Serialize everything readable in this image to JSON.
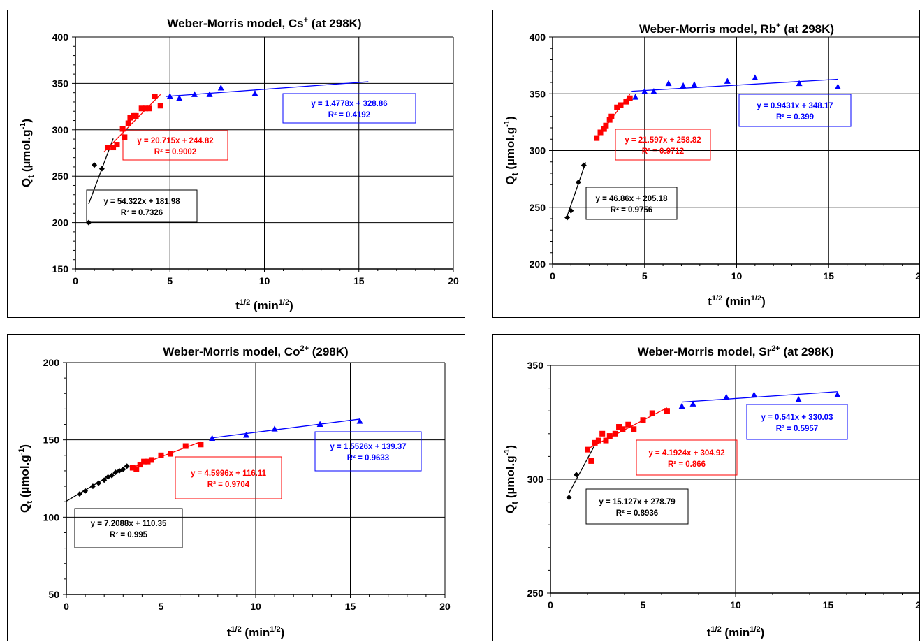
{
  "chart_data": [
    {
      "type": "scatter",
      "title": "Weber-Morris model, Cs",
      "title_ion": "+",
      "title_suffix": " (at 298K)",
      "xlabel": "t",
      "xlabel_sup": "1/2",
      "xlabel_unit": " (min",
      "xlabel_unit_sup": "1/2",
      "xlabel_close": ")",
      "ylabel": "Q",
      "ylabel_sub": "t",
      "ylabel_unit": " (µmol.g",
      "ylabel_unit_sup": "-1",
      "ylabel_close": ")",
      "xlim": [
        0,
        20
      ],
      "ylim": [
        150,
        400
      ],
      "xticks": [
        "0",
        "5",
        "10",
        "15",
        "20"
      ],
      "yticks": [
        "150",
        "200",
        "250",
        "300",
        "350",
        "400"
      ],
      "grid": true,
      "series": [
        {
          "color": "#000000",
          "marker": "diamond",
          "x": [
            0.7,
            1.0,
            1.4
          ],
          "y": [
            200,
            262,
            258
          ],
          "fit": {
            "slope": 54.322,
            "intercept": 181.98,
            "x_range": [
              0.7,
              2.0
            ]
          },
          "equation": "y = 54.322x + 181.98",
          "r2": "R² = 0.7326"
        },
        {
          "color": "#ff0000",
          "marker": "square",
          "x": [
            1.7,
            2.0,
            2.2,
            2.5,
            2.6,
            2.8,
            2.9,
            3.1,
            3.2,
            3.5,
            3.7,
            3.9,
            4.2,
            4.5
          ],
          "y": [
            281,
            281,
            284,
            301,
            292,
            307,
            313,
            315,
            315,
            323,
            323,
            323,
            336,
            326
          ],
          "fit": {
            "slope": 20.715,
            "intercept": 244.82,
            "x_range": [
              1.5,
              4.5
            ]
          },
          "equation": "y = 20.715x + 244.82",
          "r2": "R² = 0.9002"
        },
        {
          "color": "#0000ff",
          "marker": "triangle",
          "x": [
            5.0,
            5.5,
            6.3,
            7.1,
            7.7,
            9.5
          ],
          "y": [
            336,
            334,
            338,
            338,
            345,
            339
          ],
          "fit": {
            "slope": 1.4778,
            "intercept": 328.86,
            "x_range": [
              4.8,
              15.5
            ]
          },
          "equation": "y = 1.4778x + 328.86",
          "r2": "R² = 0.4192"
        }
      ]
    },
    {
      "type": "scatter",
      "title": "Weber-Morris model, Rb",
      "title_ion": "+",
      "title_suffix": " (at 298K)",
      "xlabel": "t",
      "xlabel_sup": "1/2",
      "xlabel_unit": " (min",
      "xlabel_unit_sup": "1/2",
      "xlabel_close": ")",
      "ylabel": "Q",
      "ylabel_sub": "t",
      "ylabel_unit": " (µmol.g",
      "ylabel_unit_sup": "-1",
      "ylabel_close": ")",
      "xlim": [
        0,
        20
      ],
      "ylim": [
        200,
        400
      ],
      "xticks": [
        "0",
        "5",
        "10",
        "15",
        "20"
      ],
      "yticks": [
        "200",
        "250",
        "300",
        "350",
        "400"
      ],
      "grid": true,
      "series": [
        {
          "color": "#000000",
          "marker": "diamond",
          "x": [
            0.8,
            1.0,
            1.4,
            1.7
          ],
          "y": [
            241,
            247,
            272,
            287
          ],
          "fit": {
            "slope": 46.86,
            "intercept": 205.18,
            "x_range": [
              0.8,
              1.8
            ]
          },
          "equation": "y = 46.86x + 205.18",
          "r2": "R² = 0.9756"
        },
        {
          "color": "#ff0000",
          "marker": "square",
          "x": [
            2.4,
            2.6,
            2.8,
            2.9,
            3.1,
            3.2,
            3.5,
            3.7,
            4.0,
            4.2
          ],
          "y": [
            311,
            316,
            319,
            322,
            327,
            330,
            338,
            340,
            343,
            346
          ],
          "fit": {
            "slope": 21.597,
            "intercept": 258.82,
            "x_range": [
              2.4,
              4.2
            ]
          },
          "equation": "y = 21.597x + 258.82",
          "r2": "R² = 0.9712"
        },
        {
          "color": "#0000ff",
          "marker": "triangle",
          "x": [
            4.5,
            5.0,
            5.5,
            6.3,
            7.1,
            7.7,
            9.5,
            11.0,
            13.4,
            15.5
          ],
          "y": [
            347,
            352,
            352,
            359,
            357,
            358,
            361,
            364,
            359,
            356
          ],
          "fit": {
            "slope": 0.9431,
            "intercept": 348.17,
            "x_range": [
              4.3,
              15.5
            ]
          },
          "equation": "y = 0.9431x + 348.17",
          "r2": "R² = 0.399"
        }
      ]
    },
    {
      "type": "scatter",
      "title": "Weber-Morris model, Co",
      "title_ion": "2+",
      "title_suffix": " (298K)",
      "xlabel": "t",
      "xlabel_sup": "1/2",
      "xlabel_unit": " (min",
      "xlabel_unit_sup": "1/2",
      "xlabel_close": ")",
      "ylabel": "Q",
      "ylabel_sub": "t",
      "ylabel_unit": " (µmol.g",
      "ylabel_unit_sup": "-1",
      "ylabel_close": ")",
      "xlim": [
        0,
        20
      ],
      "ylim": [
        50,
        200
      ],
      "xticks": [
        "0",
        "5",
        "10",
        "15",
        "20"
      ],
      "yticks": [
        "50",
        "100",
        "150",
        "200"
      ],
      "grid": true,
      "series": [
        {
          "color": "#000000",
          "marker": "diamond",
          "x": [
            0.7,
            1.0,
            1.4,
            1.7,
            2.0,
            2.2,
            2.4,
            2.6,
            2.8,
            3.0,
            3.2
          ],
          "y": [
            115,
            117,
            120,
            122,
            124,
            126,
            127,
            129,
            130,
            131,
            133
          ],
          "fit": {
            "slope": 7.2088,
            "intercept": 110.35,
            "x_range": [
              0,
              3.2
            ]
          },
          "equation": "y = 7.2088x + 110.35",
          "r2": "R² = 0.995"
        },
        {
          "color": "#ff0000",
          "marker": "square",
          "x": [
            3.5,
            3.7,
            3.9,
            4.1,
            4.3,
            4.5,
            5.0,
            5.5,
            6.3,
            7.1
          ],
          "y": [
            132,
            131,
            134,
            136,
            136,
            137,
            140,
            141,
            146,
            147
          ],
          "fit": {
            "slope": 4.5996,
            "intercept": 116.11,
            "x_range": [
              3.5,
              7.1
            ]
          },
          "equation": "y = 4.5996x + 116.11",
          "r2": "R² = 0.9704"
        },
        {
          "color": "#0000ff",
          "marker": "triangle",
          "x": [
            7.7,
            9.5,
            11.0,
            13.4,
            15.5
          ],
          "y": [
            151,
            153,
            157,
            160,
            162
          ],
          "fit": {
            "slope": 1.5526,
            "intercept": 139.37,
            "x_range": [
              7.7,
              15.5
            ]
          },
          "equation": "y = 1.5526x + 139.37",
          "r2": "R² = 0.9633"
        }
      ]
    },
    {
      "type": "scatter",
      "title": "Weber-Morris model, Sr",
      "title_ion": "2+",
      "title_suffix": " (at 298K)",
      "xlabel": "t",
      "xlabel_sup": "1/2",
      "xlabel_unit": " (min",
      "xlabel_unit_sup": "1/2",
      "xlabel_close": ")",
      "ylabel": "Q",
      "ylabel_sub": "t",
      "ylabel_unit": " (µmol.g",
      "ylabel_unit_sup": "-1",
      "ylabel_close": ")",
      "xlim": [
        0,
        20
      ],
      "ylim": [
        250,
        350
      ],
      "xticks": [
        "0",
        "5",
        "10",
        "15",
        "20"
      ],
      "yticks": [
        "250",
        "300",
        "350"
      ],
      "grid": true,
      "series": [
        {
          "color": "#000000",
          "marker": "diamond",
          "x": [
            1.0,
            1.4
          ],
          "y": [
            292,
            302
          ],
          "fit": {
            "slope": 15.127,
            "intercept": 278.79,
            "x_range": [
              1.0,
              2.4
            ]
          },
          "equation": "y = 15.127x + 278.79",
          "r2": "R² = 0.8936"
        },
        {
          "color": "#ff0000",
          "marker": "square",
          "x": [
            2.0,
            2.2,
            2.4,
            2.6,
            2.8,
            3.0,
            3.2,
            3.5,
            3.7,
            3.9,
            4.2,
            4.5,
            5.0,
            5.5,
            6.3
          ],
          "y": [
            313,
            308,
            316,
            317,
            320,
            317,
            319,
            320,
            323,
            322,
            324,
            322,
            326,
            329,
            330
          ],
          "fit": {
            "slope": 4.1924,
            "intercept": 304.92,
            "x_range": [
              2.0,
              6.3
            ]
          },
          "equation": "y = 4.1924x + 304.92",
          "r2": "R² = 0.866"
        },
        {
          "color": "#0000ff",
          "marker": "triangle",
          "x": [
            7.1,
            7.7,
            9.5,
            11.0,
            13.4,
            15.5
          ],
          "y": [
            332,
            333,
            336,
            337,
            335,
            337
          ],
          "fit": {
            "slope": 0.541,
            "intercept": 330.03,
            "x_range": [
              7.1,
              15.5
            ]
          },
          "equation": "y = 0.541x + 330.03",
          "r2": "R² = 0.5957"
        }
      ]
    }
  ]
}
